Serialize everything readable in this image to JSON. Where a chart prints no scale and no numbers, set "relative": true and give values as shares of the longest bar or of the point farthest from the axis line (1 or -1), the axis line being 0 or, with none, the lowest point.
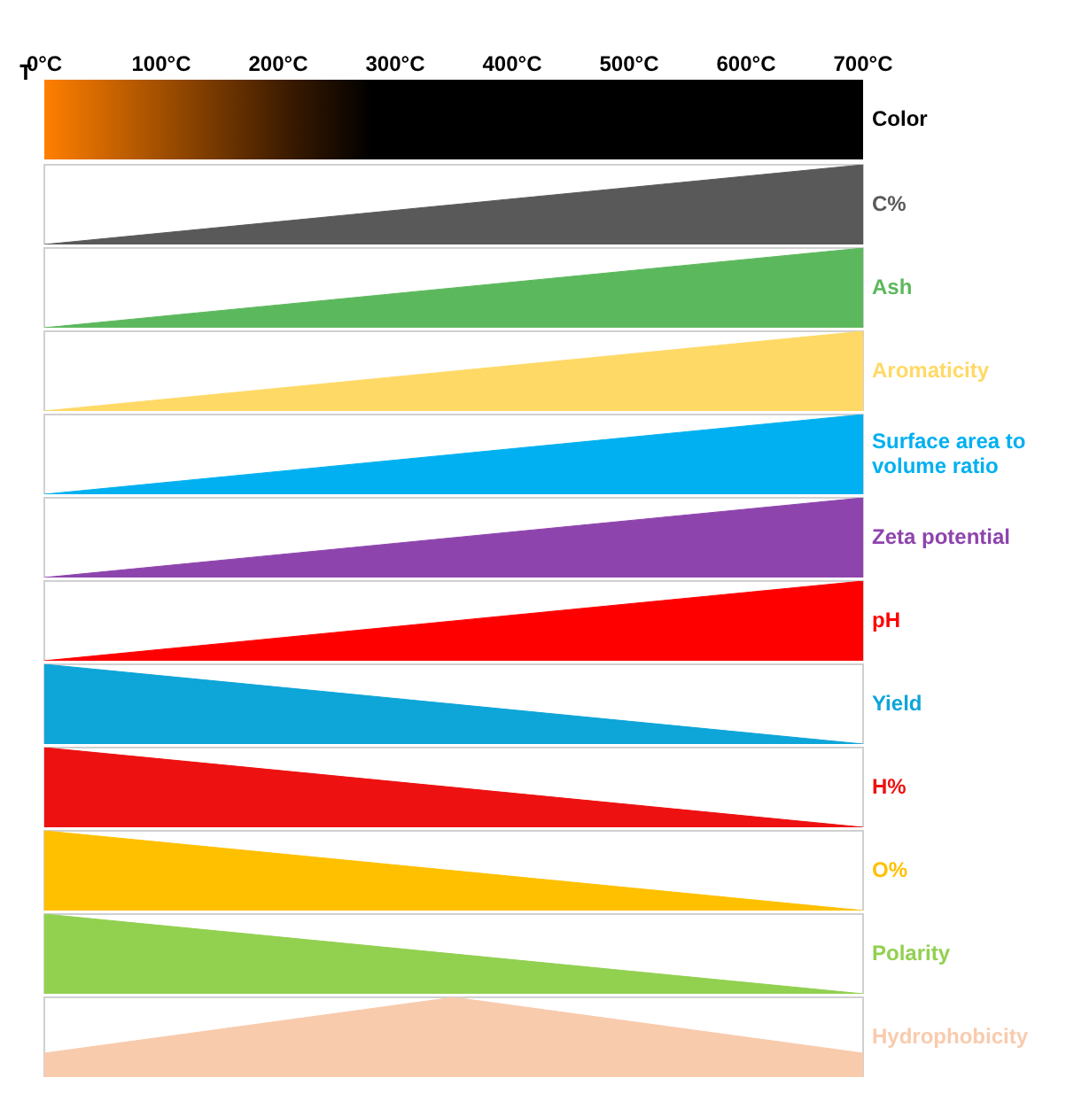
{
  "chart_data": [
    {
      "type": "area",
      "relative": true,
      "xlabel": "T",
      "annotations": [
        "Color"
      ],
      "x": [
        0,
        700
      ],
      "xlim": [
        0,
        700
      ],
      "xticks": [
        {
          "value": 0,
          "label": "0°C"
        },
        {
          "value": 100,
          "label": "100°C"
        },
        {
          "value": 200,
          "label": "200°C"
        },
        {
          "value": 300,
          "label": "300°C"
        },
        {
          "value": 400,
          "label": "400°C"
        },
        {
          "value": 500,
          "label": "500°C"
        },
        {
          "value": 600,
          "label": "600°C"
        },
        {
          "value": 700,
          "label": "700°C"
        }
      ],
      "tick_labels": "x",
      "series": [
        {
          "name": "C%",
          "color": "#595959",
          "values": [
            0,
            1
          ]
        }
      ]
    },
    {
      "type": "area",
      "relative": true,
      "x": [
        0,
        700
      ],
      "xlim": [
        0,
        700
      ],
      "tick_labels": false,
      "series": [
        {
          "name": "Ash",
          "color": "#5cb85c",
          "values": [
            0,
            1
          ]
        }
      ]
    },
    {
      "type": "area",
      "relative": true,
      "x": [
        0,
        700
      ],
      "xlim": [
        0,
        700
      ],
      "tick_labels": false,
      "series": [
        {
          "name": "Aromaticity",
          "color": "#ffd966",
          "values": [
            0,
            1
          ]
        }
      ]
    },
    {
      "type": "area",
      "relative": true,
      "x": [
        0,
        700
      ],
      "xlim": [
        0,
        700
      ],
      "tick_labels": false,
      "series": [
        {
          "name": "Surface area to volume ratio",
          "color": "#00b0f0",
          "values": [
            0,
            1
          ]
        }
      ]
    },
    {
      "type": "area",
      "relative": true,
      "x": [
        0,
        700
      ],
      "xlim": [
        0,
        700
      ],
      "tick_labels": false,
      "series": [
        {
          "name": "Zeta potential",
          "color": "#8e44ad",
          "values": [
            0,
            1
          ]
        }
      ]
    },
    {
      "type": "area",
      "relative": true,
      "x": [
        0,
        700
      ],
      "xlim": [
        0,
        700
      ],
      "tick_labels": false,
      "series": [
        {
          "name": "pH",
          "color": "#ff0000",
          "values": [
            0,
            1
          ]
        }
      ]
    },
    {
      "type": "area",
      "relative": true,
      "x": [
        0,
        700
      ],
      "xlim": [
        0,
        700
      ],
      "tick_labels": false,
      "series": [
        {
          "name": "Yield",
          "color": "#0ea5d8",
          "values": [
            1,
            0
          ]
        }
      ]
    },
    {
      "type": "area",
      "relative": true,
      "x": [
        0,
        700
      ],
      "xlim": [
        0,
        700
      ],
      "tick_labels": false,
      "series": [
        {
          "name": "H%",
          "color": "#ee1111",
          "values": [
            1,
            0
          ]
        }
      ]
    },
    {
      "type": "area",
      "relative": true,
      "x": [
        0,
        700
      ],
      "xlim": [
        0,
        700
      ],
      "tick_labels": false,
      "series": [
        {
          "name": "O%",
          "color": "#ffc000",
          "values": [
            1,
            0
          ]
        }
      ]
    },
    {
      "type": "area",
      "relative": true,
      "x": [
        0,
        700
      ],
      "xlim": [
        0,
        700
      ],
      "tick_labels": false,
      "series": [
        {
          "name": "Polarity",
          "color": "#92d050",
          "values": [
            1,
            0
          ]
        }
      ]
    },
    {
      "type": "area",
      "relative": true,
      "x": [
        0,
        350,
        700
      ],
      "xlim": [
        0,
        700
      ],
      "tick_labels": false,
      "series": [
        {
          "name": "Hydrophobicity",
          "color": "#f8cbad",
          "values": [
            0.3,
            1,
            0.3
          ]
        }
      ]
    }
  ]
}
